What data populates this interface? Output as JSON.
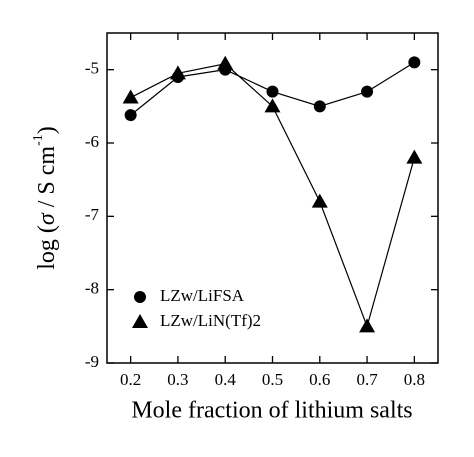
{
  "chart_data": {
    "type": "line",
    "x_label": "Mole fraction of lithium salts",
    "y_label": {
      "pre": "log (",
      "symbol": "σ",
      "mid": " / S cm",
      "sup": "-1",
      "post": ")"
    },
    "x": [
      0.2,
      0.3,
      0.4,
      0.5,
      0.6,
      0.7,
      0.8
    ],
    "series": [
      {
        "name": "LZw/LiFSA",
        "marker": "circle",
        "color": "#000000",
        "values": [
          -5.62,
          -5.1,
          -5.0,
          -5.3,
          -5.5,
          -5.3,
          -4.9
        ]
      },
      {
        "name": "LZw/LiN(Tf)2",
        "marker": "triangle",
        "color": "#000000",
        "values": [
          -5.38,
          -5.05,
          -4.92,
          -5.5,
          -6.8,
          -8.5,
          -6.2
        ]
      }
    ],
    "xlim": [
      0.15,
      0.85
    ],
    "xticks": [
      0.2,
      0.3,
      0.4,
      0.5,
      0.6,
      0.7,
      0.8
    ],
    "ylim": [
      -9.0,
      -4.5
    ],
    "yticks": [
      -9,
      -8,
      -7,
      -6,
      -5
    ],
    "legend": "lower-left",
    "grid": false
  }
}
